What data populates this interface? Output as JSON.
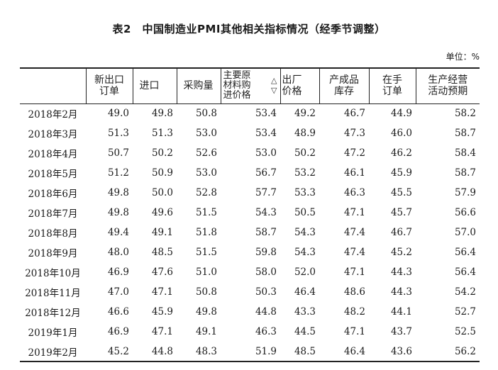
{
  "title": "表2　中国制造业PMI其他相关指标情况（经季节调整）",
  "unit": "单位：%",
  "columns": [
    "",
    "新出口\n订单",
    "进口",
    "采购量",
    "主要原\n材料购\n进价格",
    "出厂\n价格",
    "产成品\n库存",
    "在手\n订单",
    "生产经营\n活动预期"
  ],
  "scroll_icons": {
    "up": "chevron-up-icon",
    "down": "chevron-down-icon"
  },
  "rows": [
    {
      "month": "2018年2月",
      "values": [
        "49.0",
        "49.8",
        "50.8",
        "53.4",
        "49.2",
        "46.7",
        "44.9",
        "58.2"
      ]
    },
    {
      "month": "2018年3月",
      "values": [
        "51.3",
        "51.3",
        "53.0",
        "53.4",
        "48.9",
        "47.3",
        "46.0",
        "58.7"
      ]
    },
    {
      "month": "2018年4月",
      "values": [
        "50.7",
        "50.2",
        "52.6",
        "53.0",
        "50.2",
        "47.2",
        "46.2",
        "58.4"
      ]
    },
    {
      "month": "2018年5月",
      "values": [
        "51.2",
        "50.9",
        "53.0",
        "56.7",
        "53.2",
        "46.1",
        "45.9",
        "58.7"
      ]
    },
    {
      "month": "2018年6月",
      "values": [
        "49.8",
        "50.0",
        "52.8",
        "57.7",
        "53.3",
        "46.3",
        "45.5",
        "57.9"
      ]
    },
    {
      "month": "2018年7月",
      "values": [
        "49.8",
        "49.6",
        "51.5",
        "54.3",
        "50.5",
        "47.1",
        "45.7",
        "56.6"
      ]
    },
    {
      "month": "2018年8月",
      "values": [
        "49.4",
        "49.1",
        "51.8",
        "58.7",
        "54.3",
        "47.4",
        "46.7",
        "57.0"
      ]
    },
    {
      "month": "2018年9月",
      "values": [
        "48.0",
        "48.5",
        "51.5",
        "59.8",
        "54.3",
        "47.4",
        "45.2",
        "56.4"
      ]
    },
    {
      "month": "2018年10月",
      "values": [
        "46.9",
        "47.6",
        "51.0",
        "58.0",
        "52.0",
        "47.1",
        "44.3",
        "56.4"
      ]
    },
    {
      "month": "2018年11月",
      "values": [
        "47.0",
        "47.1",
        "50.8",
        "50.3",
        "46.4",
        "48.6",
        "44.3",
        "54.2"
      ]
    },
    {
      "month": "2018年12月",
      "values": [
        "46.6",
        "45.9",
        "49.8",
        "44.8",
        "43.3",
        "48.2",
        "44.1",
        "52.7"
      ]
    },
    {
      "month": "2019年1月",
      "values": [
        "46.9",
        "47.1",
        "49.1",
        "46.3",
        "44.5",
        "47.1",
        "43.7",
        "52.5"
      ]
    },
    {
      "month": "2019年2月",
      "values": [
        "45.2",
        "44.8",
        "48.3",
        "51.9",
        "48.5",
        "46.4",
        "43.6",
        "56.2"
      ]
    }
  ]
}
